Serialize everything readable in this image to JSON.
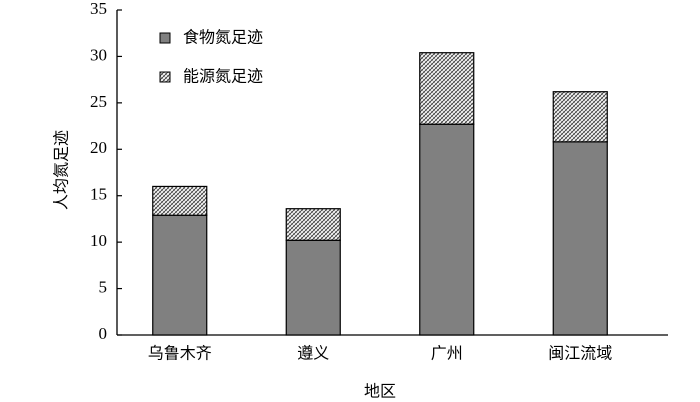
{
  "chart_data": {
    "type": "stacked-bar",
    "categories": [
      "乌鲁木齐",
      "遵义",
      "广州",
      "闽江流域"
    ],
    "series": [
      {
        "name": "食物氮足迹",
        "color": "#808080",
        "values": [
          12.9,
          10.2,
          22.7,
          20.8
        ]
      },
      {
        "name": "能源氮足迹",
        "color": "#ffffff",
        "pattern": "hatch",
        "values": [
          3.1,
          3.4,
          7.7,
          5.4
        ]
      }
    ],
    "xlabel": "地区",
    "ylabel": "人均氮足迹",
    "ylim": [
      0,
      35
    ],
    "yticks": [
      0,
      5,
      10,
      15,
      20,
      25,
      30,
      35
    ],
    "legend": "upper left"
  }
}
